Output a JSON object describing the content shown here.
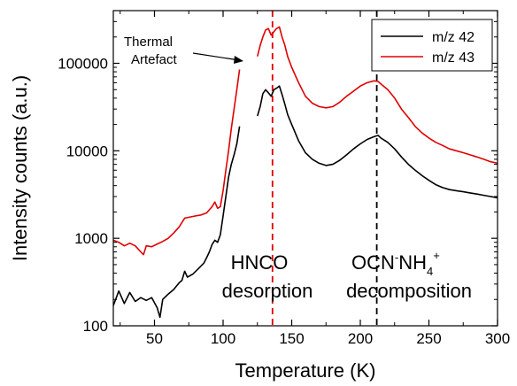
{
  "chart_data": {
    "type": "line",
    "title": "",
    "xlabel": "Temperature (K)",
    "ylabel": "Intensity counts (a.u.)",
    "xlim": [
      20,
      300
    ],
    "ylim": [
      100,
      400000
    ],
    "yscale": "log",
    "grid": false,
    "legend_position": "top-right",
    "x_ticks": [
      50,
      100,
      150,
      200,
      250,
      300
    ],
    "x_tick_labels": [
      "50",
      "100",
      "150",
      "200",
      "250",
      "300"
    ],
    "y_ticks": [
      100,
      1000,
      10000,
      100000
    ],
    "y_tick_labels": [
      "100",
      "1000",
      "10000",
      "100000"
    ],
    "series": [
      {
        "name": "m/z 42",
        "color": "#000000",
        "segments": [
          [
            [
              20,
              170
            ],
            [
              24,
              250
            ],
            [
              28,
              180
            ],
            [
              32,
              240
            ],
            [
              36,
              190
            ],
            [
              40,
              210
            ],
            [
              44,
              195
            ],
            [
              48,
              210
            ],
            [
              52,
              160
            ],
            [
              54,
              125
            ],
            [
              56,
              200
            ],
            [
              60,
              230
            ],
            [
              64,
              260
            ],
            [
              68,
              310
            ],
            [
              70,
              330
            ],
            [
              72,
              420
            ],
            [
              74,
              360
            ],
            [
              78,
              390
            ],
            [
              82,
              450
            ],
            [
              86,
              520
            ],
            [
              88,
              600
            ],
            [
              90,
              700
            ],
            [
              92,
              850
            ],
            [
              94,
              950
            ],
            [
              96,
              900
            ],
            [
              98,
              1100
            ],
            [
              100,
              1800
            ],
            [
              102,
              3000
            ],
            [
              104,
              5000
            ],
            [
              106,
              7000
            ],
            [
              108,
              9000
            ],
            [
              110,
              12000
            ],
            [
              112,
              19000
            ]
          ],
          [
            [
              125,
              25000
            ],
            [
              127,
              32000
            ],
            [
              129,
              45000
            ],
            [
              131,
              50000
            ],
            [
              133,
              46000
            ],
            [
              135,
              42000
            ],
            [
              137,
              50000
            ],
            [
              139,
              52000
            ],
            [
              141,
              55000
            ],
            [
              143,
              44000
            ],
            [
              145,
              34000
            ],
            [
              147,
              26000
            ],
            [
              150,
              20000
            ],
            [
              155,
              13000
            ],
            [
              160,
              9500
            ],
            [
              165,
              8000
            ],
            [
              170,
              7200
            ],
            [
              175,
              6800
            ],
            [
              180,
              7000
            ],
            [
              185,
              7800
            ],
            [
              190,
              9000
            ],
            [
              195,
              10500
            ],
            [
              200,
              12000
            ],
            [
              205,
              13500
            ],
            [
              210,
              14500
            ],
            [
              213,
              15000
            ],
            [
              215,
              14000
            ],
            [
              220,
              12500
            ],
            [
              225,
              10500
            ],
            [
              230,
              8500
            ],
            [
              235,
              7000
            ],
            [
              240,
              6000
            ],
            [
              245,
              5200
            ],
            [
              250,
              4600
            ],
            [
              255,
              4100
            ],
            [
              260,
              3800
            ],
            [
              265,
              3600
            ],
            [
              270,
              3500
            ],
            [
              275,
              3400
            ],
            [
              280,
              3300
            ],
            [
              285,
              3200
            ],
            [
              290,
              3100
            ],
            [
              295,
              3000
            ],
            [
              300,
              2900
            ]
          ]
        ]
      },
      {
        "name": "m/z 43",
        "color": "#e00000",
        "segments": [
          [
            [
              20,
              950
            ],
            [
              24,
              900
            ],
            [
              28,
              820
            ],
            [
              32,
              880
            ],
            [
              36,
              820
            ],
            [
              40,
              700
            ],
            [
              42,
              650
            ],
            [
              44,
              820
            ],
            [
              48,
              800
            ],
            [
              52,
              860
            ],
            [
              56,
              920
            ],
            [
              60,
              1000
            ],
            [
              64,
              1150
            ],
            [
              68,
              1350
            ],
            [
              72,
              1700
            ],
            [
              76,
              1750
            ],
            [
              80,
              1800
            ],
            [
              84,
              1850
            ],
            [
              88,
              1950
            ],
            [
              92,
              2300
            ],
            [
              94,
              2600
            ],
            [
              96,
              2200
            ],
            [
              98,
              2300
            ],
            [
              100,
              3500
            ],
            [
              102,
              6000
            ],
            [
              104,
              10000
            ],
            [
              106,
              18000
            ],
            [
              108,
              30000
            ],
            [
              110,
              50000
            ],
            [
              112,
              85000
            ]
          ],
          [
            [
              125,
              120000
            ],
            [
              127,
              160000
            ],
            [
              129,
              200000
            ],
            [
              131,
              240000
            ],
            [
              133,
              250000
            ],
            [
              135,
              210000
            ],
            [
              137,
              230000
            ],
            [
              139,
              250000
            ],
            [
              141,
              260000
            ],
            [
              143,
              200000
            ],
            [
              145,
              160000
            ],
            [
              147,
              120000
            ],
            [
              150,
              90000
            ],
            [
              155,
              60000
            ],
            [
              160,
              42000
            ],
            [
              165,
              35000
            ],
            [
              170,
              32000
            ],
            [
              175,
              31000
            ],
            [
              180,
              32000
            ],
            [
              185,
              36000
            ],
            [
              190,
              42000
            ],
            [
              195,
              48000
            ],
            [
              200,
              55000
            ],
            [
              205,
              60000
            ],
            [
              210,
              63000
            ],
            [
              213,
              62000
            ],
            [
              215,
              58000
            ],
            [
              220,
              50000
            ],
            [
              225,
              40000
            ],
            [
              230,
              30000
            ],
            [
              235,
              24000
            ],
            [
              240,
              19000
            ],
            [
              245,
              16000
            ],
            [
              250,
              14000
            ],
            [
              255,
              12500
            ],
            [
              260,
              11500
            ],
            [
              265,
              10500
            ],
            [
              270,
              10000
            ],
            [
              275,
              9500
            ],
            [
              280,
              9000
            ],
            [
              285,
              8500
            ],
            [
              290,
              8000
            ],
            [
              295,
              7500
            ],
            [
              300,
              7200
            ]
          ]
        ]
      }
    ],
    "vlines": [
      {
        "x": 136,
        "color": "#e00000",
        "style": "dashed"
      },
      {
        "x": 212,
        "color": "#000000",
        "style": "dashed"
      }
    ],
    "annotations": {
      "thermal_line1": "Thermal",
      "thermal_line2": "Artefact",
      "hnco_line1": "HNCO",
      "hnco_line2": "desorption",
      "ocn_base1": "OCN",
      "ocn_sup1": "-",
      "ocn_base2": "NH",
      "ocn_sub": "4",
      "ocn_sup2": "+",
      "ocn_line2": "decomposition"
    }
  }
}
